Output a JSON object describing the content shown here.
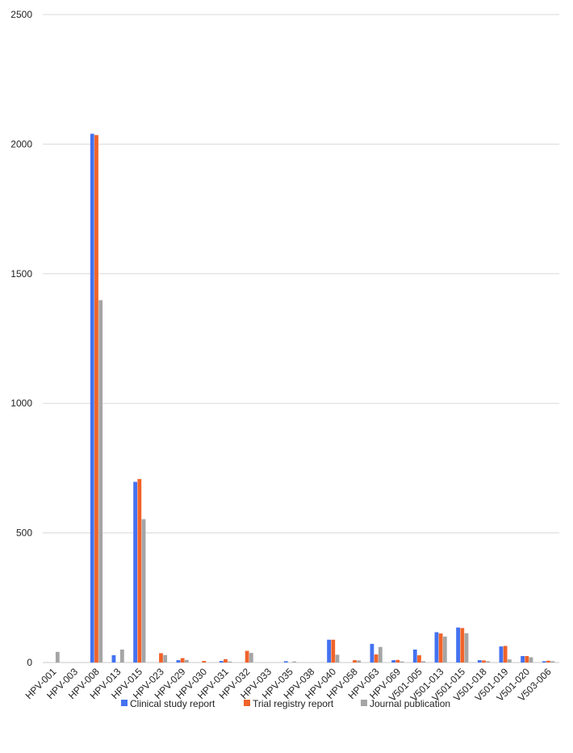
{
  "chart_data": {
    "type": "bar",
    "categories": [
      "HPV-001",
      "HPV-003",
      "HPV-008",
      "HPV-013",
      "HPV-015",
      "HPV-023",
      "HPV-029",
      "HPV-030",
      "HPV-031",
      "HPV-032",
      "HPV-033",
      "HPV-035",
      "HPV-038",
      "HPV-040",
      "HPV-058",
      "HPV-063",
      "HPV-069",
      "V501-005",
      "V501-013",
      "V501-015",
      "V501-018",
      "V501-019",
      "V501-020",
      "V503-006"
    ],
    "series": [
      {
        "name": "Clinical study report",
        "color": "#4472F0",
        "values": [
          0,
          0,
          2040,
          28,
          697,
          0,
          9,
          0,
          6,
          0,
          0,
          5,
          0,
          88,
          0,
          72,
          9,
          50,
          117,
          135,
          9,
          62,
          25,
          5
        ]
      },
      {
        "name": "Trial registry report",
        "color": "#F0632A",
        "values": [
          0,
          0,
          2035,
          0,
          708,
          36,
          17,
          6,
          13,
          45,
          0,
          0,
          0,
          88,
          9,
          31,
          10,
          28,
          112,
          133,
          8,
          64,
          25,
          7
        ]
      },
      {
        "name": "Journal publication",
        "color": "#A5A5A5",
        "values": [
          41,
          0,
          1398,
          50,
          553,
          29,
          10,
          0,
          4,
          37,
          0,
          4,
          0,
          30,
          8,
          60,
          4,
          5,
          100,
          113,
          5,
          12,
          20,
          5
        ]
      }
    ],
    "yticks": [
      "0",
      "500",
      "1000",
      "1500",
      "2000",
      "2500"
    ],
    "ylim": [
      0,
      2500
    ],
    "grid": true,
    "legend": "bottom-center",
    "title": "",
    "xlabel": "",
    "ylabel": ""
  }
}
